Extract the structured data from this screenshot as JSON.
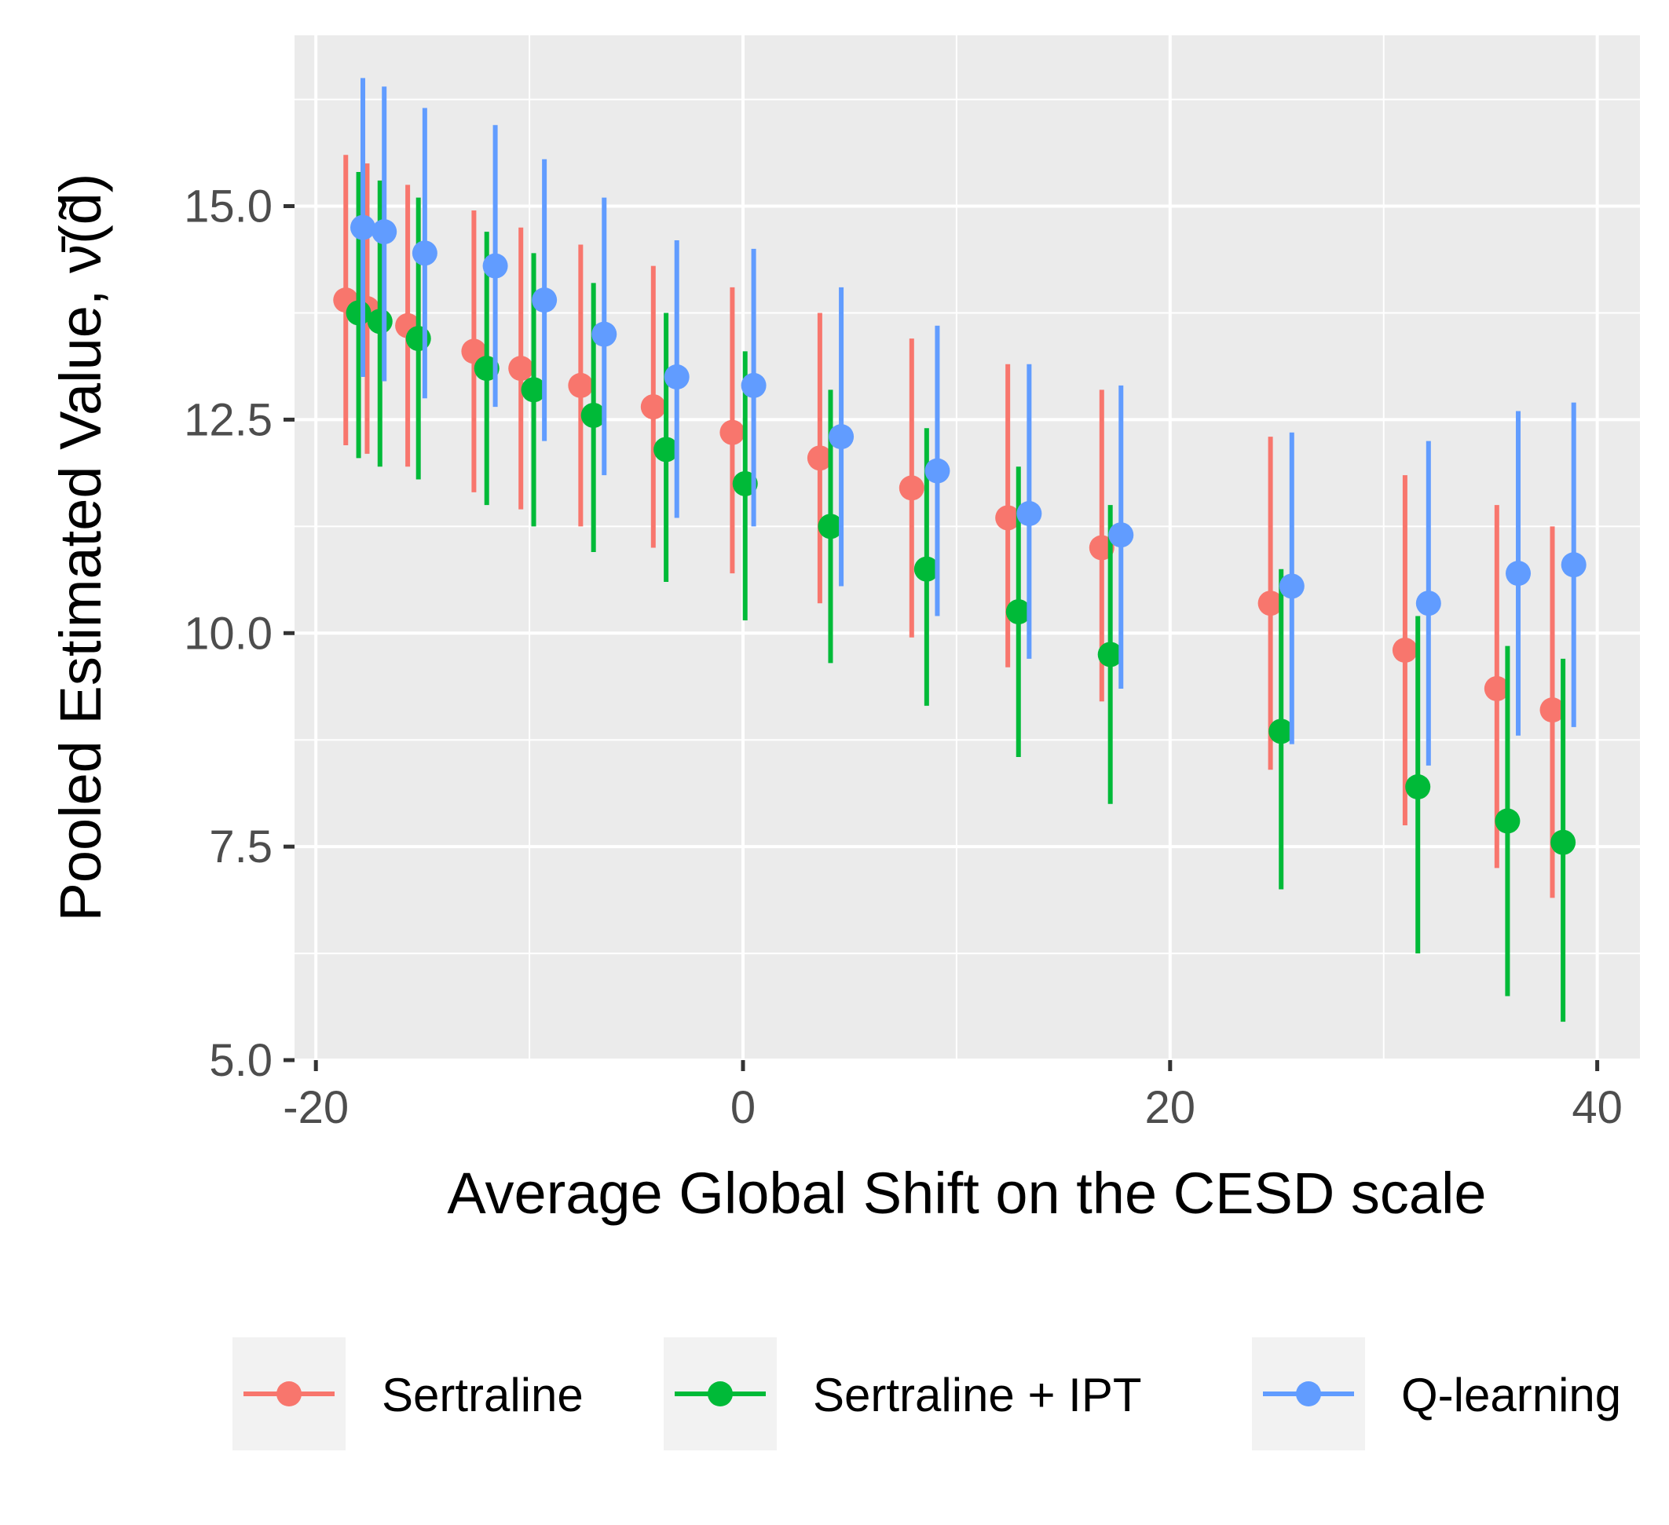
{
  "chart_data": {
    "type": "scatter",
    "subtype": "point-range",
    "xlabel": "Average Global Shift on the CESD scale",
    "ylabel": "Pooled Estimated Value, ν̄(d̃)",
    "xlim": [
      -21,
      42
    ],
    "ylim": [
      5,
      17
    ],
    "x_ticks": [
      -20,
      0,
      20,
      40
    ],
    "x_tick_labels": [
      "-20",
      "0",
      "20",
      "40"
    ],
    "y_ticks": [
      5,
      7.5,
      10,
      12.5,
      15
    ],
    "y_tick_labels": [
      "5.0",
      "7.5",
      "10.0",
      "12.5",
      "15.0"
    ],
    "grid": true,
    "background": "#ebebeb",
    "legend_position": "bottom",
    "series": [
      {
        "name": "Sertraline",
        "color": "#f8766d",
        "points": [
          {
            "x": -18.6,
            "y": 13.9,
            "lo": 12.2,
            "hi": 15.6
          },
          {
            "x": -17.6,
            "y": 13.8,
            "lo": 12.1,
            "hi": 15.5
          },
          {
            "x": -15.7,
            "y": 13.6,
            "lo": 11.95,
            "hi": 15.25
          },
          {
            "x": -12.6,
            "y": 13.3,
            "lo": 11.65,
            "hi": 14.95
          },
          {
            "x": -10.4,
            "y": 13.1,
            "lo": 11.45,
            "hi": 14.75
          },
          {
            "x": -7.6,
            "y": 12.9,
            "lo": 11.25,
            "hi": 14.55
          },
          {
            "x": -4.2,
            "y": 12.65,
            "lo": 11.0,
            "hi": 14.3
          },
          {
            "x": -0.5,
            "y": 12.35,
            "lo": 10.7,
            "hi": 14.05
          },
          {
            "x": 3.6,
            "y": 12.05,
            "lo": 10.35,
            "hi": 13.75
          },
          {
            "x": 7.9,
            "y": 11.7,
            "lo": 9.95,
            "hi": 13.45
          },
          {
            "x": 12.4,
            "y": 11.35,
            "lo": 9.6,
            "hi": 13.15
          },
          {
            "x": 16.8,
            "y": 11.0,
            "lo": 9.2,
            "hi": 12.85
          },
          {
            "x": 24.7,
            "y": 10.35,
            "lo": 8.4,
            "hi": 12.3
          },
          {
            "x": 31.0,
            "y": 9.8,
            "lo": 7.75,
            "hi": 11.85
          },
          {
            "x": 35.3,
            "y": 9.35,
            "lo": 7.25,
            "hi": 11.5
          },
          {
            "x": 37.9,
            "y": 9.1,
            "lo": 6.9,
            "hi": 11.25
          }
        ]
      },
      {
        "name": "Sertraline + IPT",
        "color": "#00ba38",
        "points": [
          {
            "x": -18.0,
            "y": 13.75,
            "lo": 12.05,
            "hi": 15.4
          },
          {
            "x": -17.0,
            "y": 13.65,
            "lo": 11.95,
            "hi": 15.3
          },
          {
            "x": -15.2,
            "y": 13.45,
            "lo": 11.8,
            "hi": 15.1
          },
          {
            "x": -12.0,
            "y": 13.1,
            "lo": 11.5,
            "hi": 14.7
          },
          {
            "x": -9.8,
            "y": 12.85,
            "lo": 11.25,
            "hi": 14.45
          },
          {
            "x": -7.0,
            "y": 12.55,
            "lo": 10.95,
            "hi": 14.1
          },
          {
            "x": -3.6,
            "y": 12.15,
            "lo": 10.6,
            "hi": 13.75
          },
          {
            "x": 0.1,
            "y": 11.75,
            "lo": 10.15,
            "hi": 13.3
          },
          {
            "x": 4.1,
            "y": 11.25,
            "lo": 9.65,
            "hi": 12.85
          },
          {
            "x": 8.6,
            "y": 10.75,
            "lo": 9.15,
            "hi": 12.4
          },
          {
            "x": 12.9,
            "y": 10.25,
            "lo": 8.55,
            "hi": 11.95
          },
          {
            "x": 17.2,
            "y": 9.75,
            "lo": 8.0,
            "hi": 11.5
          },
          {
            "x": 25.2,
            "y": 8.85,
            "lo": 7.0,
            "hi": 10.75
          },
          {
            "x": 31.6,
            "y": 8.2,
            "lo": 6.25,
            "hi": 10.2
          },
          {
            "x": 35.8,
            "y": 7.8,
            "lo": 5.75,
            "hi": 9.85
          },
          {
            "x": 38.4,
            "y": 7.55,
            "lo": 5.45,
            "hi": 9.7
          }
        ]
      },
      {
        "name": "Q-learning",
        "color": "#619cff",
        "points": [
          {
            "x": -17.8,
            "y": 14.75,
            "lo": 13.0,
            "hi": 16.5
          },
          {
            "x": -16.8,
            "y": 14.7,
            "lo": 12.95,
            "hi": 16.4
          },
          {
            "x": -14.9,
            "y": 14.45,
            "lo": 12.75,
            "hi": 16.15
          },
          {
            "x": -11.6,
            "y": 14.3,
            "lo": 12.65,
            "hi": 15.95
          },
          {
            "x": -9.3,
            "y": 13.9,
            "lo": 12.25,
            "hi": 15.55
          },
          {
            "x": -6.5,
            "y": 13.5,
            "lo": 11.85,
            "hi": 15.1
          },
          {
            "x": -3.1,
            "y": 13.0,
            "lo": 11.35,
            "hi": 14.6
          },
          {
            "x": 0.5,
            "y": 12.9,
            "lo": 11.25,
            "hi": 14.5
          },
          {
            "x": 4.6,
            "y": 12.3,
            "lo": 10.55,
            "hi": 14.05
          },
          {
            "x": 9.1,
            "y": 11.9,
            "lo": 10.2,
            "hi": 13.6
          },
          {
            "x": 13.4,
            "y": 11.4,
            "lo": 9.7,
            "hi": 13.15
          },
          {
            "x": 17.7,
            "y": 11.15,
            "lo": 9.35,
            "hi": 12.9
          },
          {
            "x": 25.7,
            "y": 10.55,
            "lo": 8.7,
            "hi": 12.35
          },
          {
            "x": 32.1,
            "y": 10.35,
            "lo": 8.45,
            "hi": 12.25
          },
          {
            "x": 36.3,
            "y": 10.7,
            "lo": 8.8,
            "hi": 12.6
          },
          {
            "x": 38.9,
            "y": 10.8,
            "lo": 8.9,
            "hi": 12.7
          }
        ]
      }
    ]
  }
}
